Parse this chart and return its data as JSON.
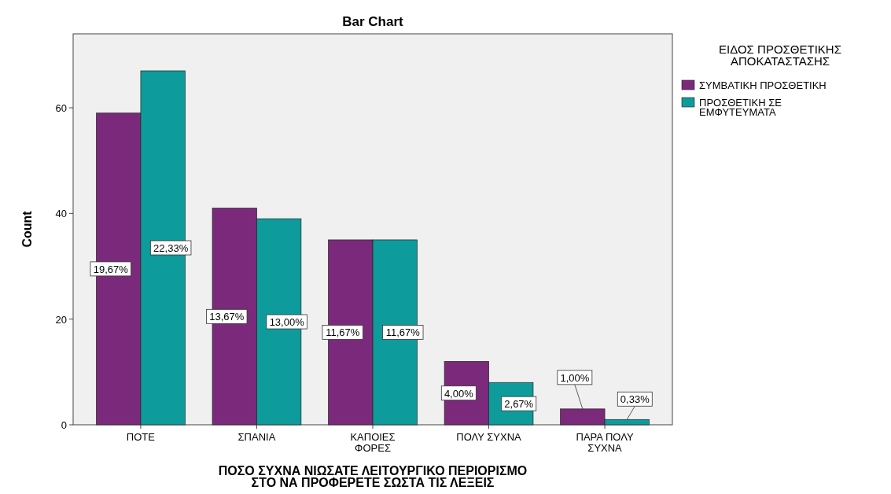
{
  "chart_data": {
    "type": "bar",
    "title": "Bar Chart",
    "xlabel": "ΠΟΣΟ ΣΥΧΝΑ ΝΙΩΣΑΤΕ ΛΕΙΤΟΥΡΓΙΚΟ ΠΕΡΙΟΡΙΣΜΟ ΣΤΟ ΝΑ ΠΡΟΦΕΡΕΤΕ ΣΩΣΤΑ ΤΙΣ ΛΕΞΕΙΣ",
    "ylabel": "Count",
    "legend_title": "ΕΙΔΟΣ ΠΡΟΣΘΕΤΙΚΗΣ ΑΠΟΚΑΤΑΣΤΑΣΗΣ",
    "legend": "top right",
    "grid": false,
    "categories": [
      "ΠΟΤΕ",
      "ΣΠΑΝΙΑ",
      "ΚΑΠΟΙΕΣ ΦΟΡΕΣ",
      "ΠΟΛΥ ΣΥΧΝΑ",
      "ΠΑΡΑ ΠΟΛΥ ΣΥΧΝΑ"
    ],
    "series": [
      {
        "name": "ΣΥΜΒΑΤΙΚΗ ΠΡΟΣΘΕΤΙΚΗ",
        "color": "#7b2a7b",
        "values": [
          59,
          41,
          35,
          12,
          3
        ]
      },
      {
        "name": "ΠΡΟΣΘΕΤΙΚΗ ΣΕ ΕΜΦΥΤΕΥΜΑΤΑ",
        "color": "#0e9b9b",
        "values": [
          67,
          39,
          35,
          8,
          1
        ]
      }
    ],
    "annotations": [
      {
        "text": "19,67%",
        "x": "ΠΟΤΕ",
        "y": 29.5
      },
      {
        "text": "22,33%",
        "x": "ΠΟΤΕ",
        "y": 33.5
      },
      {
        "text": "13,67%",
        "x": "ΣΠΑΝΙΑ",
        "y": 20.5
      },
      {
        "text": "13,00%",
        "x": "ΣΠΑΝΙΑ",
        "y": 19.5
      },
      {
        "text": "11,67%",
        "x": "ΚΑΠΟΙΕΣ ΦΟΡΕΣ",
        "y": 17.5
      },
      {
        "text": "11,67%",
        "x": "ΚΑΠΟΙΕΣ ΦΟΡΕΣ",
        "y": 17.5
      },
      {
        "text": "4,00%",
        "x": "ΠΟΛΥ ΣΥΧΝΑ",
        "y": 6
      },
      {
        "text": "2,67%",
        "x": "ΠΟΛΥ ΣΥΧΝΑ",
        "y": 4
      },
      {
        "text": "1,00%",
        "x": "ΠΑΡΑ ΠΟΛΥ ΣΥΧΝΑ",
        "y": 3
      },
      {
        "text": "0,33%",
        "x": "ΠΑΡΑ ΠΟΛΥ ΣΥΧΝΑ",
        "y": 1
      }
    ],
    "ylim": [
      0,
      74
    ],
    "yticks": [
      0,
      20,
      40,
      60
    ]
  }
}
